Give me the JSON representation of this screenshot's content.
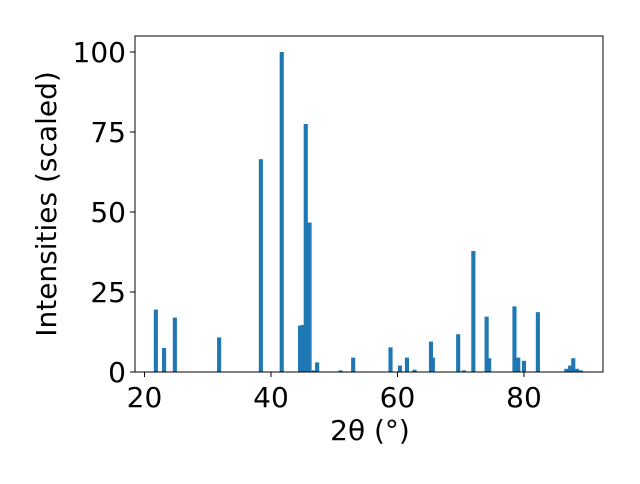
{
  "chart_data": {
    "type": "bar",
    "xlabel": "2θ (°)",
    "ylabel": "Intensities (scaled)",
    "xlim": [
      18.5,
      92.5
    ],
    "ylim": [
      0,
      105
    ],
    "x_ticks": [
      20,
      40,
      60,
      80
    ],
    "y_ticks": [
      0,
      25,
      50,
      75,
      100
    ],
    "grid": false,
    "bar_color": "#1f77b4",
    "bar_width": 0.65,
    "series": [
      {
        "x": [
          21.8,
          23.1,
          24.8,
          31.8,
          38.4,
          41.7,
          44.6,
          45.0,
          45.5,
          46.1,
          46.8,
          47.3,
          51.0,
          53.0,
          58.9,
          60.4,
          61.5,
          62.7,
          65.3,
          65.6,
          69.6,
          70.5,
          72.0,
          74.1,
          74.5,
          78.5,
          79.1,
          80.0,
          82.2,
          86.7,
          87.3,
          87.8,
          88.4,
          89.0
        ],
        "y": [
          19.5,
          7.5,
          17.0,
          10.8,
          66.5,
          100,
          14.5,
          14.7,
          77.5,
          46.7,
          0.5,
          3.0,
          0.5,
          4.5,
          7.7,
          2.0,
          4.5,
          0.7,
          9.5,
          4.5,
          11.8,
          0.5,
          37.8,
          17.3,
          4.3,
          20.5,
          4.5,
          3.5,
          18.7,
          1.0,
          2.0,
          4.3,
          1.0,
          0.5
        ]
      }
    ]
  }
}
